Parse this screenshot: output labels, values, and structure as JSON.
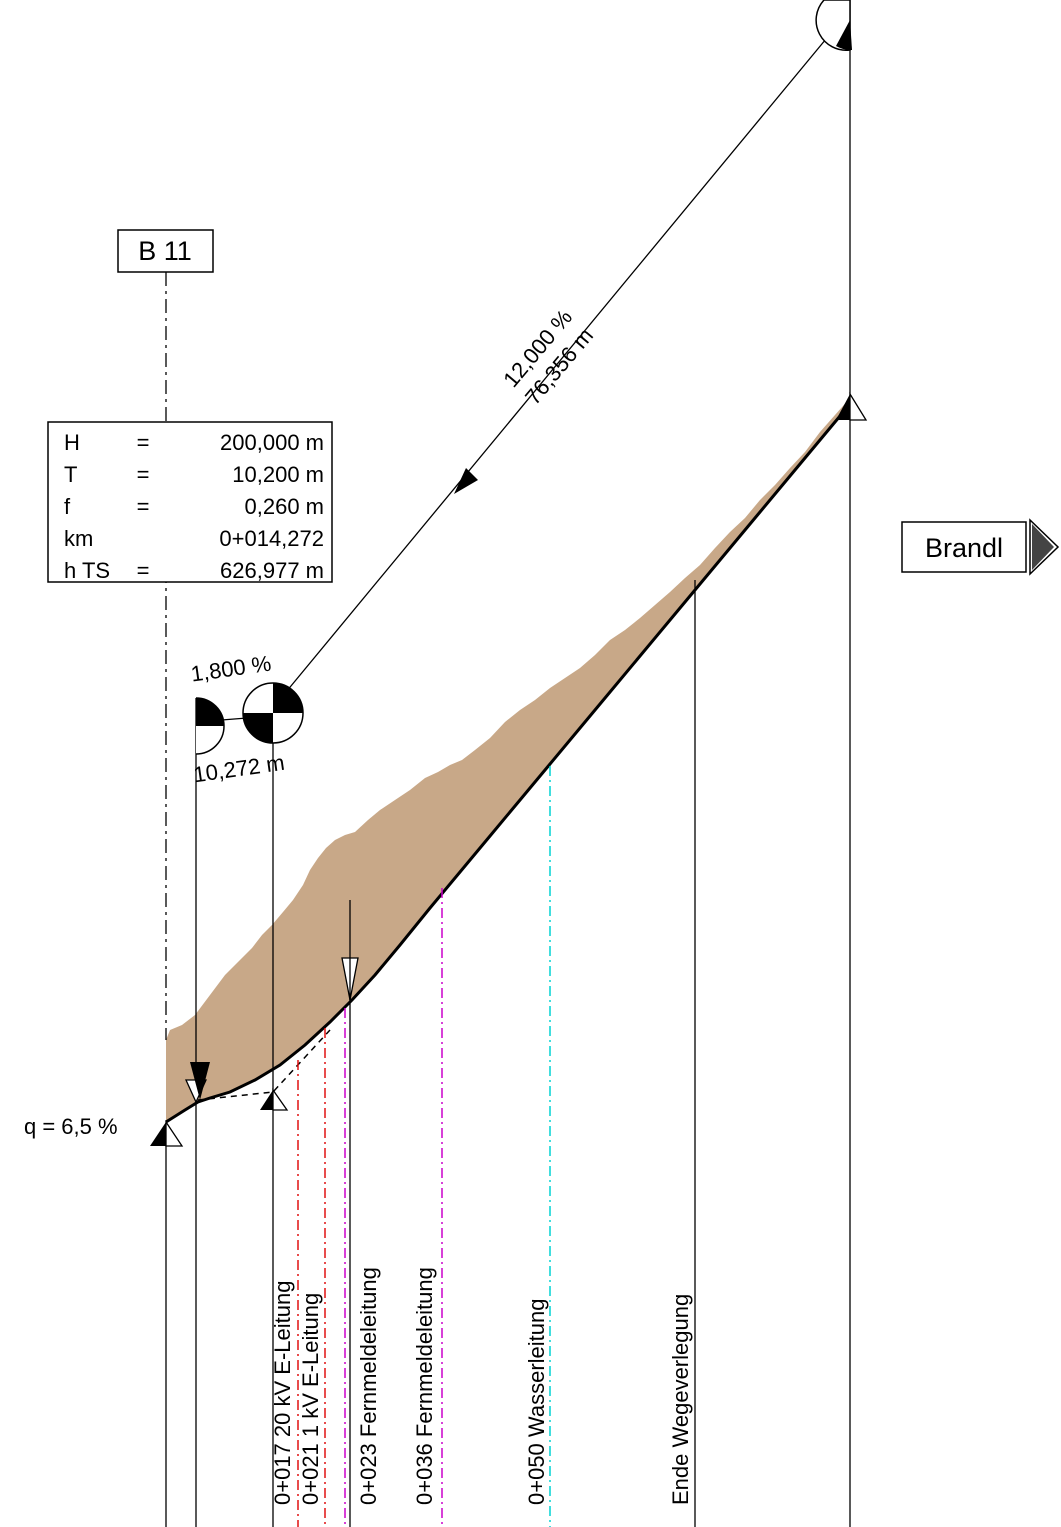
{
  "boxes": {
    "b11": {
      "label": "B 11"
    },
    "brandl": {
      "label": "Brandl"
    }
  },
  "curve_info": {
    "rows": [
      {
        "key": "H",
        "eq": "=",
        "value": "200,000 m"
      },
      {
        "key": "T",
        "eq": "=",
        "value": "10,200 m"
      },
      {
        "key": "f",
        "eq": "=",
        "value": "0,260 m"
      },
      {
        "key": "km",
        "eq": "",
        "value": "0+014,272"
      },
      {
        "key": "h TS",
        "eq": "=",
        "value": "626,977 m"
      }
    ]
  },
  "gradients": {
    "main": {
      "slope": "12,000 %",
      "length": "76,356 m"
    },
    "first": {
      "slope": "1,800 %",
      "length": "10,272 m"
    }
  },
  "cross_slope": {
    "label": "q = 6,5 %"
  },
  "stations": [
    {
      "label": "0+017 20 kV E-Leitung"
    },
    {
      "label": "0+021 1 kV E-Leitung"
    },
    {
      "label": "0+023 Fernmeldeleitung"
    },
    {
      "label": "0+036 Fernmeldeleitung"
    },
    {
      "label": "0+050 Wasserleitung"
    },
    {
      "label": "Ende Wegeverlegung"
    }
  ],
  "colors": {
    "terrain_fill": "#c8a888",
    "power_20kv": "#e01010",
    "power_1kv": "#e01010",
    "telecom": "#cc00cc",
    "water": "#00d4d4",
    "line": "#000000"
  }
}
